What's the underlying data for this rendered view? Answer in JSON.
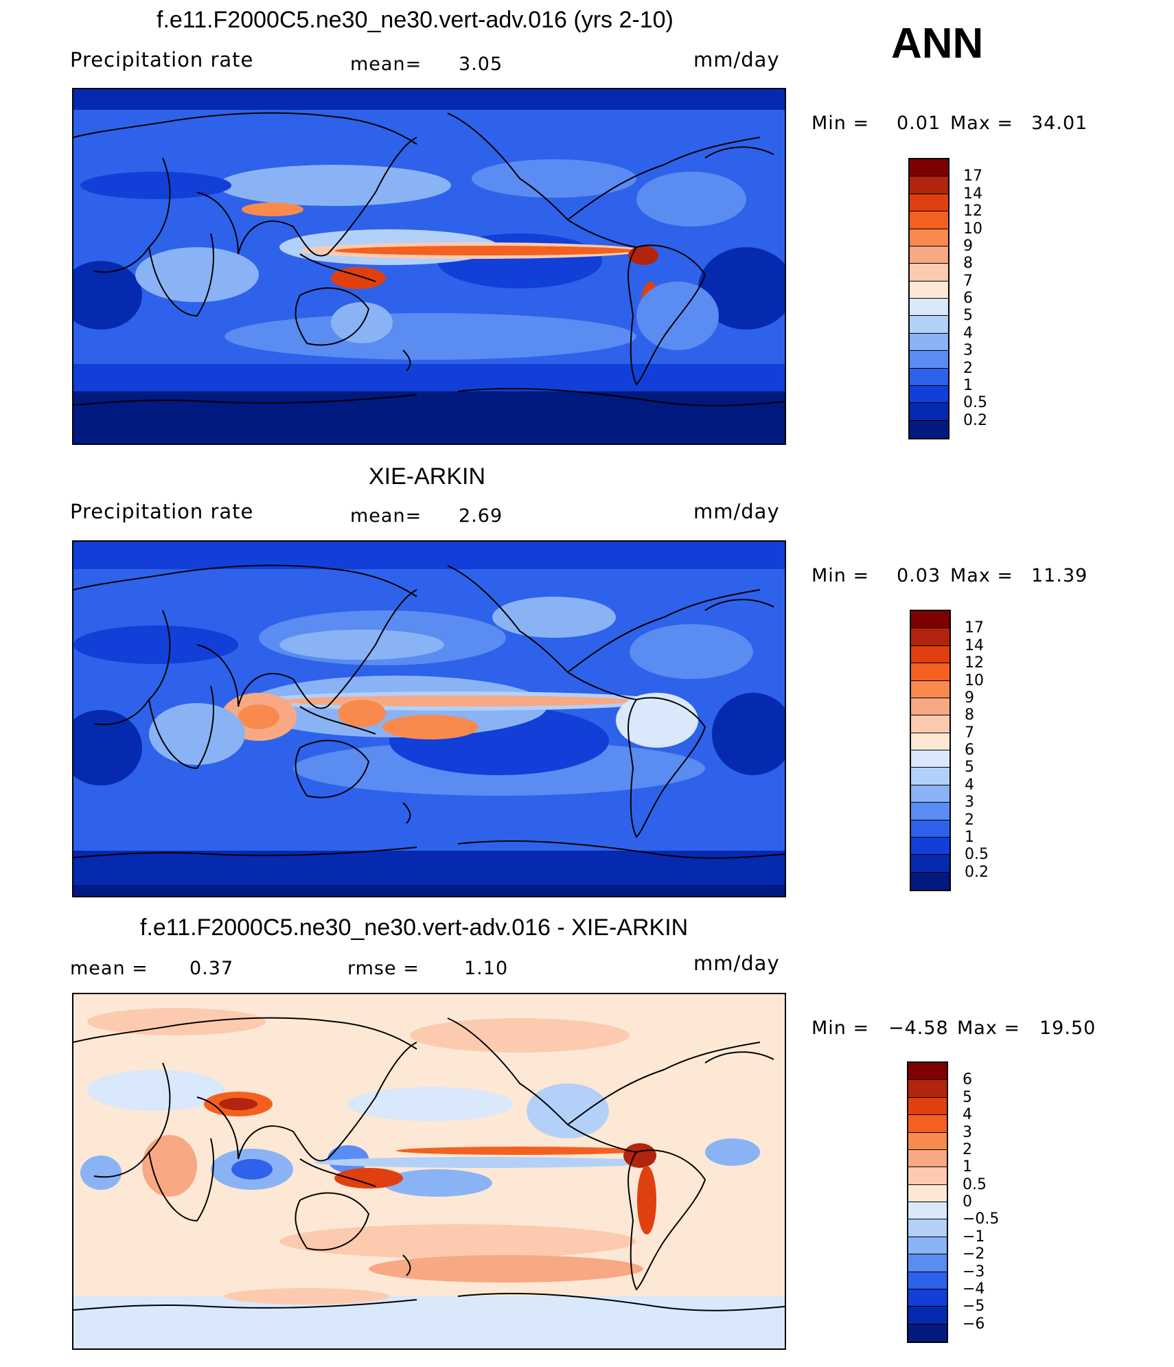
{
  "season": "ANN",
  "panels": [
    {
      "title": "f.e11.F2000C5.ne30_ne30.vert-adv.016 (yrs 2-10)",
      "left_label": "Precipitation  rate",
      "center_label": "mean=",
      "center_value": "3.05",
      "units": "mm/day",
      "min_label": "Min  =",
      "min_value": "0.01",
      "max_label": "Max  =",
      "max_value": "34.01",
      "palette": "precip",
      "colorbar": {
        "ticks": [
          "17",
          "14",
          "12",
          "10",
          "9",
          "8",
          "7",
          "6",
          "5",
          "4",
          "3",
          "2",
          "1",
          "0.5",
          "0.2"
        ],
        "colors": [
          "#7f0000",
          "#b2240d",
          "#e0400f",
          "#f4601f",
          "#f98a4e",
          "#f8a883",
          "#fccbaf",
          "#fde8d5",
          "#d9e8fa",
          "#b3d0f8",
          "#89b3f5",
          "#5a8cf1",
          "#2e62ea",
          "#113fd8",
          "#052ab0",
          "#001a80"
        ]
      }
    },
    {
      "title": "XIE-ARKIN",
      "left_label": "Precipitation  rate",
      "center_label": "mean=",
      "center_value": "2.69",
      "units": "mm/day",
      "min_label": "Min  =",
      "min_value": "0.03",
      "max_label": "Max  =",
      "max_value": "11.39",
      "palette": "precip",
      "colorbar": {
        "ticks": [
          "17",
          "14",
          "12",
          "10",
          "9",
          "8",
          "7",
          "6",
          "5",
          "4",
          "3",
          "2",
          "1",
          "0.5",
          "0.2"
        ],
        "colors": [
          "#7f0000",
          "#b2240d",
          "#e0400f",
          "#f4601f",
          "#f98a4e",
          "#f8a883",
          "#fccbaf",
          "#fde8d5",
          "#d9e8fa",
          "#b3d0f8",
          "#89b3f5",
          "#5a8cf1",
          "#2e62ea",
          "#113fd8",
          "#052ab0",
          "#001a80"
        ]
      }
    },
    {
      "title": "f.e11.F2000C5.ne30_ne30.vert-adv.016 - XIE-ARKIN",
      "left_label": "mean  =",
      "left_value": "0.37",
      "center_label": "rmse  =",
      "center_value": "1.10",
      "units": "mm/day",
      "min_label": "Min  =",
      "min_value": "−4.58",
      "max_label": "Max  =",
      "max_value": "19.50",
      "palette": "diff",
      "colorbar": {
        "ticks": [
          "6",
          "5",
          "4",
          "3",
          "2",
          "1",
          "0.5",
          "0",
          "−0.5",
          "−1",
          "−2",
          "−3",
          "−4",
          "−5",
          "−6"
        ],
        "colors": [
          "#7f0000",
          "#b2240d",
          "#e0400f",
          "#f4601f",
          "#f98a4e",
          "#f8a883",
          "#fccbaf",
          "#fde8d5",
          "#d9e8fa",
          "#b3d0f8",
          "#89b3f5",
          "#5a8cf1",
          "#2e62ea",
          "#113fd8",
          "#052ab0",
          "#001a80"
        ]
      }
    }
  ]
}
